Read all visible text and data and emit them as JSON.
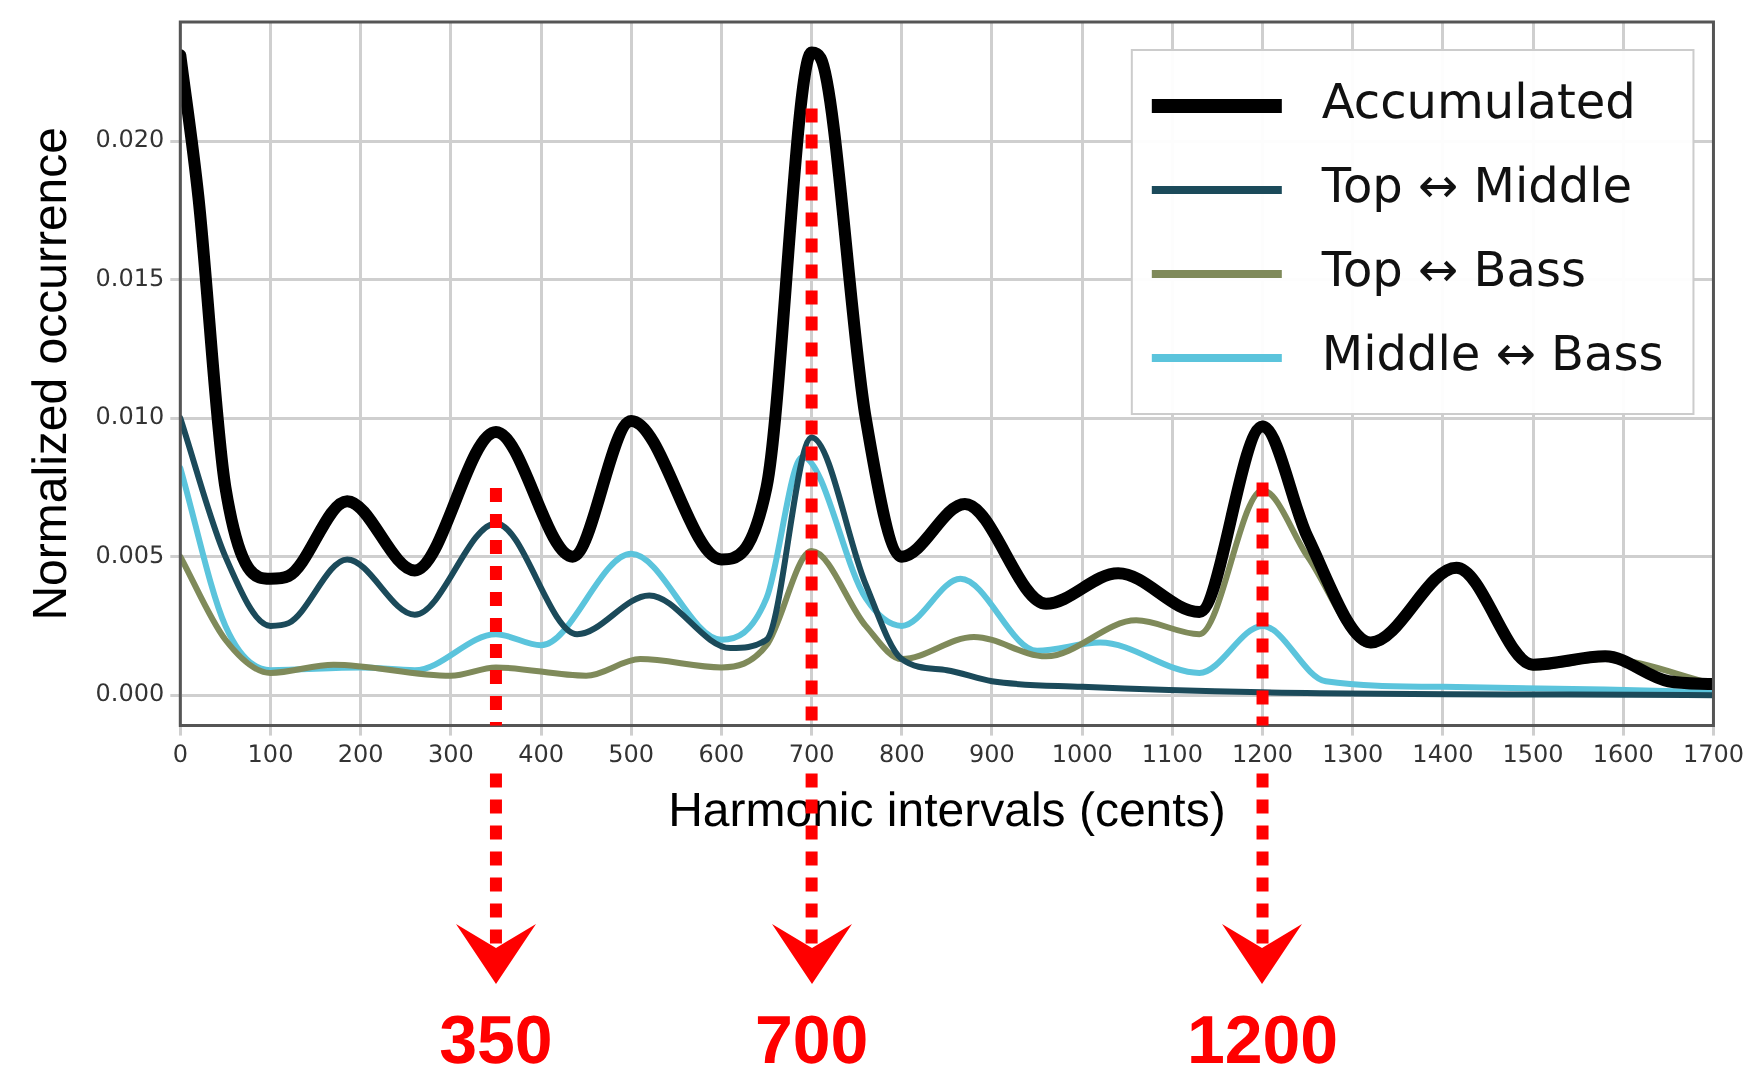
{
  "chart_data": {
    "type": "line",
    "xlabel": "Harmonic intervals (cents)",
    "ylabel": "Normalized occurrence",
    "xlim": [
      0,
      1700
    ],
    "xticks": [
      0,
      100,
      200,
      300,
      400,
      500,
      600,
      700,
      800,
      900,
      1000,
      1100,
      1200,
      1300,
      1400,
      1500,
      1600,
      1700
    ],
    "ylim": [
      -0.0011,
      0.0243
    ],
    "yticks": [
      {
        "value": 0,
        "label": "0.000"
      },
      {
        "value": 0.005,
        "label": "0.005"
      },
      {
        "value": 0.01,
        "label": "0.010"
      },
      {
        "value": 0.015,
        "label": "0.015"
      },
      {
        "value": 0.02,
        "label": "0.020"
      }
    ],
    "grid": true,
    "legend": "top right",
    "marker": "none",
    "line_style": "solid",
    "series": [
      {
        "name": "Accumulated",
        "color": "#000000",
        "x": [
          0,
          20,
          50,
          100,
          120,
          185,
          260,
          350,
          435,
          500,
          600,
          650,
          700,
          710,
          760,
          800,
          870,
          960,
          1040,
          1130,
          1200,
          1250,
          1320,
          1415,
          1500,
          1580,
          1650,
          1700
        ],
        "values": [
          0.0231,
          0.018,
          0.0075,
          0.0042,
          0.0043,
          0.007,
          0.0045,
          0.0095,
          0.005,
          0.0099,
          0.0049,
          0.0075,
          0.0232,
          0.023,
          0.01,
          0.005,
          0.0069,
          0.0033,
          0.0044,
          0.003,
          0.0097,
          0.0057,
          0.0019,
          0.0046,
          0.0011,
          0.0014,
          0.0005,
          0.0004
        ]
      },
      {
        "name": "Top ↔ Middle",
        "color": "#1b4a5a",
        "x": [
          0,
          50,
          100,
          120,
          185,
          260,
          350,
          440,
          520,
          610,
          650,
          700,
          760,
          800,
          850,
          900,
          1000,
          1200,
          1700
        ],
        "values": [
          0.01,
          0.005,
          0.0025,
          0.0026,
          0.0049,
          0.0029,
          0.0062,
          0.0022,
          0.0036,
          0.0017,
          0.002,
          0.0093,
          0.004,
          0.0013,
          0.0009,
          0.0005,
          0.0003,
          0.0001,
          0
        ]
      },
      {
        "name": "Top ↔ Bass",
        "color": "#7f8a5a",
        "x": [
          0,
          50,
          100,
          170,
          300,
          350,
          450,
          510,
          600,
          650,
          700,
          760,
          800,
          880,
          960,
          1060,
          1130,
          1200,
          1250,
          1320,
          1415,
          1500,
          1580,
          1700
        ],
        "values": [
          0.005,
          0.002,
          0.0008,
          0.0011,
          0.0007,
          0.001,
          0.0007,
          0.0013,
          0.001,
          0.0018,
          0.0052,
          0.0025,
          0.0013,
          0.0021,
          0.0014,
          0.0027,
          0.0022,
          0.0074,
          0.005,
          0.0018,
          0.0045,
          0.001,
          0.0013,
          0.0004
        ]
      },
      {
        "name": "Middle ↔ Bass",
        "color": "#5bc4dc",
        "x": [
          0,
          50,
          100,
          200,
          260,
          350,
          400,
          500,
          600,
          650,
          690,
          760,
          800,
          865,
          950,
          1020,
          1130,
          1200,
          1270,
          1400,
          1580,
          1700
        ],
        "values": [
          0.0082,
          0.0025,
          0.0009,
          0.001,
          0.0009,
          0.0022,
          0.0018,
          0.0051,
          0.002,
          0.0035,
          0.0086,
          0.0035,
          0.0025,
          0.0042,
          0.0016,
          0.0019,
          0.0008,
          0.0025,
          0.0005,
          0.0003,
          0.0002,
          0.0001
        ]
      }
    ],
    "ref_lines": [
      {
        "axis": "x",
        "value": 350,
        "label": "350",
        "color": "#ff0000",
        "line_style": "dotted"
      },
      {
        "axis": "x",
        "value": 700,
        "label": "700",
        "color": "#ff0000",
        "line_style": "dotted"
      },
      {
        "axis": "x",
        "value": 1200,
        "label": "1200",
        "color": "#ff0000",
        "line_style": "dotted"
      }
    ]
  }
}
